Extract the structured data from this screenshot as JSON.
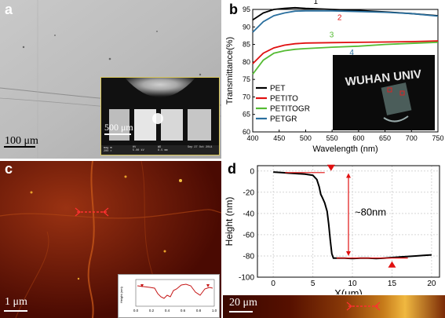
{
  "panel_a": {
    "label": "a",
    "scale_bar": "100 μm",
    "inset_scale_bar": "500 μm",
    "inset_meta": {
      "left_col": "mag ⊞\n200 ×",
      "mid_col": "HV\n5.00 kV",
      "right_col": "WD\n8.5 mm",
      "date": "Sep 27 Oct 2014"
    }
  },
  "panel_b": {
    "label": "b",
    "photo_text": "WUHAN UNIV",
    "curve_labels": [
      "1",
      "2",
      "3",
      "4"
    ],
    "colors": {
      "PET": "#000000",
      "PETITO": "#e01010",
      "PETITOGR": "#55bb33",
      "PETGR": "#2a6f9e"
    }
  },
  "panel_c": {
    "label": "c",
    "scale_bar": "1 μm",
    "inset_ylabel": "Height (nm)",
    "inset_xticks": [
      "0.0",
      "0.2",
      "0.4",
      "0.6",
      "0.8",
      "1.0"
    ]
  },
  "panel_d": {
    "label": "d",
    "annotation": "~80nm",
    "scale_bar": "20 μm"
  },
  "chart_data": [
    {
      "type": "line",
      "panel": "b",
      "xlabel": "Wavelength (nm)",
      "ylabel": "Transmittance(%)",
      "xlim": [
        400,
        750
      ],
      "ylim": [
        60,
        95
      ],
      "xticks": [
        400,
        450,
        500,
        550,
        600,
        650,
        700,
        750
      ],
      "yticks": [
        60,
        65,
        70,
        75,
        80,
        85,
        90,
        95
      ],
      "legend_position": "bottom-left",
      "series": [
        {
          "name": "PET",
          "color": "#000000",
          "x": [
            400,
            420,
            440,
            460,
            480,
            500,
            550,
            600,
            650,
            700,
            750
          ],
          "y": [
            92,
            94,
            95,
            95.3,
            95.5,
            95.3,
            95,
            94.7,
            94.3,
            93.8,
            93.2
          ]
        },
        {
          "name": "PETITO",
          "color": "#e01010",
          "x": [
            400,
            420,
            440,
            460,
            480,
            500,
            550,
            600,
            650,
            700,
            750
          ],
          "y": [
            79.5,
            82.5,
            84,
            84.8,
            85.2,
            85.4,
            85.5,
            85.6,
            85.7,
            85.8,
            86
          ]
        },
        {
          "name": "PETITOGR",
          "color": "#55bb33",
          "x": [
            400,
            420,
            440,
            460,
            480,
            500,
            550,
            600,
            650,
            700,
            750
          ],
          "y": [
            76.5,
            80.5,
            82.5,
            83.2,
            83.6,
            83.8,
            84.2,
            84.5,
            85,
            85.3,
            85.6
          ]
        },
        {
          "name": "PETGR",
          "color": "#2a6f9e",
          "x": [
            400,
            420,
            440,
            460,
            480,
            500,
            550,
            600,
            650,
            700,
            750
          ],
          "y": [
            88.5,
            91.5,
            93.2,
            94,
            94.5,
            94.6,
            94.6,
            94.4,
            94.2,
            93.8,
            93.1
          ]
        }
      ]
    },
    {
      "type": "line",
      "panel": "d",
      "xlabel": "X(μm)",
      "ylabel": "Height (nm)",
      "xlim": [
        -2,
        21
      ],
      "ylim": [
        -100,
        5
      ],
      "xticks": [
        0,
        5,
        10,
        15,
        20
      ],
      "yticks": [
        0,
        -20,
        -40,
        -60,
        -80,
        -100
      ],
      "grid": true,
      "series": [
        {
          "x": [
            0,
            1,
            2,
            3,
            4,
            5,
            5.5,
            5.8,
            6.0,
            6.2,
            6.5,
            6.8,
            7.0,
            7.2,
            7.4,
            7.6,
            8,
            9,
            10,
            11,
            12,
            13,
            14,
            15,
            16,
            17,
            18,
            19,
            20
          ],
          "y": [
            -1,
            -1.5,
            -2,
            -2.5,
            -3,
            -4,
            -8,
            -15,
            -22,
            -25,
            -30,
            -38,
            -50,
            -65,
            -78,
            -82,
            -82,
            -82,
            -82.5,
            -82,
            -82,
            -82.5,
            -82,
            -81.5,
            -81,
            -80.5,
            -80,
            -79.5,
            -79
          ]
        }
      ]
    }
  ]
}
